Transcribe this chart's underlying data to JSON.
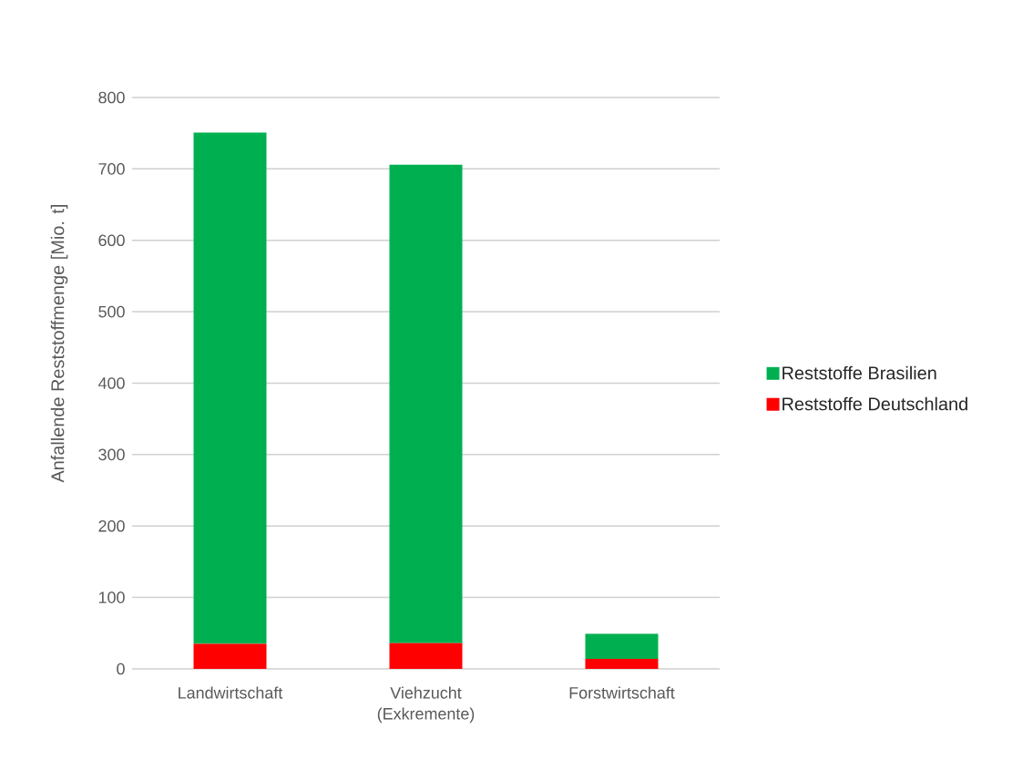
{
  "chart_data": {
    "type": "bar",
    "stacked": true,
    "ylabel": "Anfallende Reststoffmenge [Mio. t]",
    "categories": [
      "Landwirtschaft",
      "Viehzucht (Exkremente)",
      "Forstwirtschaft"
    ],
    "series": [
      {
        "name": "Reststoffe Deutschland",
        "color": "#ff0000",
        "values": [
          35,
          36,
          14
        ]
      },
      {
        "name": "Reststoffe Brasilien",
        "color": "#00b050",
        "values": [
          716,
          670,
          35
        ]
      }
    ],
    "ylim": [
      0,
      800
    ],
    "yticks": [
      0,
      100,
      200,
      300,
      400,
      500,
      600,
      700,
      800
    ],
    "grid": "y",
    "legend": "right"
  }
}
